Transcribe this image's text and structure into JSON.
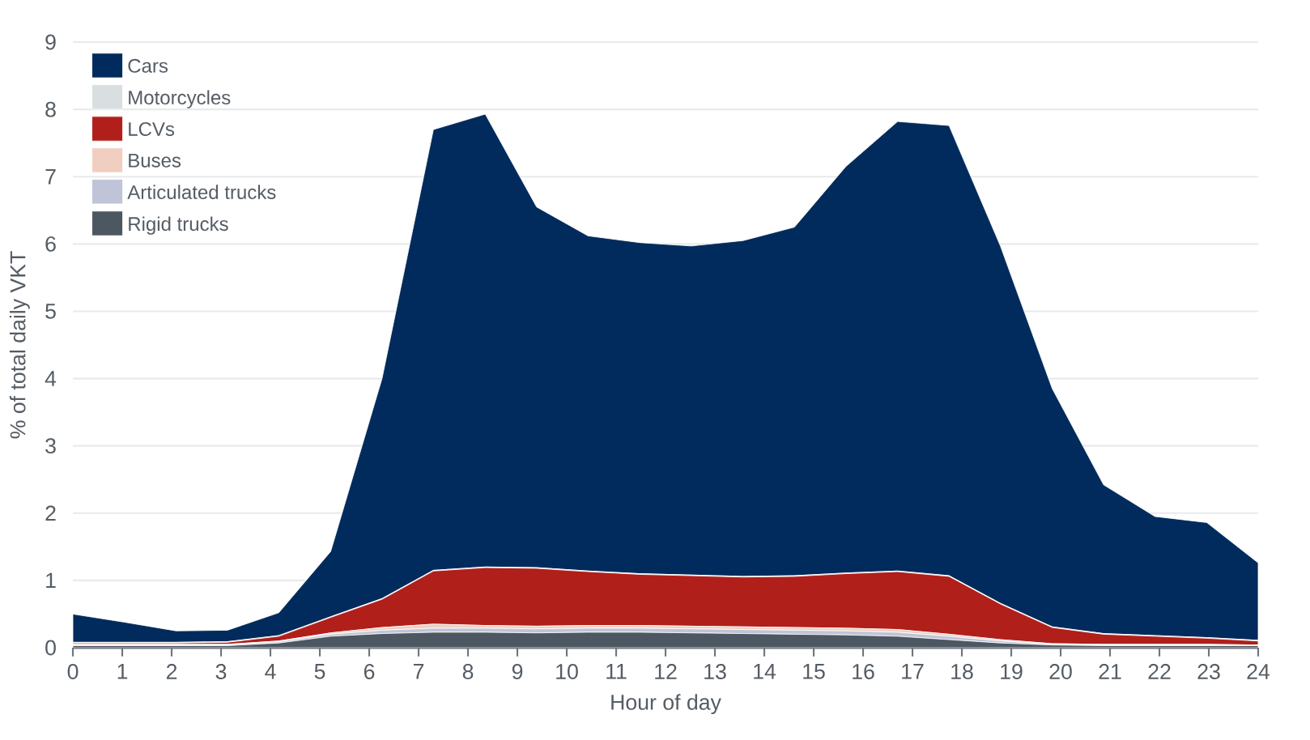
{
  "chart_data": {
    "type": "area",
    "stacked": true,
    "xlabel": "Hour of day",
    "ylabel": "% of total daily VKT",
    "x": [
      0,
      1.04,
      2.09,
      3.13,
      4.17,
      5.22,
      6.26,
      7.3,
      8.35,
      9.39,
      10.43,
      11.48,
      12.52,
      13.57,
      14.61,
      15.65,
      16.7,
      17.74,
      18.78,
      19.83,
      20.87,
      21.91,
      22.96,
      24
    ],
    "series": [
      {
        "name": "Rigid trucks",
        "color": "#4d5761",
        "values": [
          0.03,
          0.03,
          0.03,
          0.03,
          0.07,
          0.17,
          0.21,
          0.23,
          0.23,
          0.22,
          0.23,
          0.23,
          0.22,
          0.21,
          0.2,
          0.19,
          0.17,
          0.12,
          0.07,
          0.04,
          0.03,
          0.03,
          0.03,
          0.03
        ]
      },
      {
        "name": "Articulated trucks",
        "color": "#c0c4d8",
        "values": [
          0.01,
          0.01,
          0.01,
          0.01,
          0.02,
          0.03,
          0.05,
          0.06,
          0.06,
          0.06,
          0.06,
          0.06,
          0.06,
          0.06,
          0.06,
          0.06,
          0.06,
          0.05,
          0.03,
          0.01,
          0.01,
          0.01,
          0.01,
          0.01
        ]
      },
      {
        "name": "Buses",
        "color": "#f0cfc0",
        "values": [
          0.01,
          0.01,
          0.01,
          0.01,
          0.01,
          0.02,
          0.04,
          0.06,
          0.04,
          0.04,
          0.04,
          0.04,
          0.04,
          0.04,
          0.04,
          0.04,
          0.04,
          0.03,
          0.02,
          0.01,
          0.01,
          0.01,
          0.01,
          0.0
        ]
      },
      {
        "name": "LCVs",
        "color": "#b01f1a",
        "values": [
          0.02,
          0.02,
          0.02,
          0.03,
          0.07,
          0.23,
          0.42,
          0.79,
          0.86,
          0.86,
          0.8,
          0.76,
          0.75,
          0.74,
          0.76,
          0.81,
          0.86,
          0.86,
          0.53,
          0.24,
          0.15,
          0.12,
          0.09,
          0.06
        ]
      },
      {
        "name": "Motorcycles",
        "color": "#d9dfe0",
        "values": [
          0.01,
          0.01,
          0.01,
          0.01,
          0.01,
          0.01,
          0.01,
          0.01,
          0.01,
          0.01,
          0.01,
          0.01,
          0.01,
          0.01,
          0.01,
          0.01,
          0.01,
          0.01,
          0.01,
          0.01,
          0.01,
          0.01,
          0.01,
          0.01
        ]
      },
      {
        "name": "Cars",
        "color": "#002b5c",
        "values": [
          0.42,
          0.3,
          0.17,
          0.17,
          0.34,
          0.97,
          3.27,
          6.55,
          6.73,
          5.36,
          4.98,
          4.92,
          4.89,
          4.99,
          5.18,
          6.04,
          6.68,
          6.69,
          5.31,
          3.54,
          2.21,
          1.77,
          1.71,
          1.15
        ]
      }
    ],
    "xlim": [
      0,
      24
    ],
    "ylim": [
      0,
      9
    ],
    "xticks": [
      0,
      1,
      2,
      3,
      4,
      5,
      6,
      7,
      8,
      9,
      10,
      11,
      12,
      13,
      14,
      15,
      16,
      17,
      18,
      19,
      20,
      21,
      22,
      23,
      24
    ],
    "yticks": [
      0,
      1,
      2,
      3,
      4,
      5,
      6,
      7,
      8,
      9
    ],
    "grid": "y",
    "legend": "top left"
  }
}
